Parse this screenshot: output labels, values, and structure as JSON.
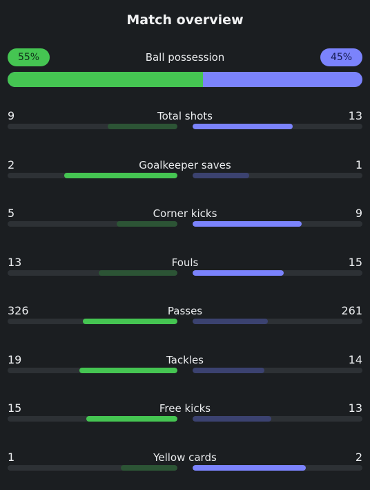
{
  "header": {
    "title": "Match overview"
  },
  "colors": {
    "home_strong": "#45c552",
    "home_dim": "#2c5435",
    "away_strong": "#7b83fc",
    "away_dim": "#3b4270"
  },
  "possession": {
    "label": "Ball possession",
    "home": "55%",
    "away": "45%",
    "home_value": 55
  },
  "stats": [
    {
      "label": "Total shots",
      "home": "9",
      "away": "13"
    },
    {
      "label": "Goalkeeper saves",
      "home": "2",
      "away": "1"
    },
    {
      "label": "Corner kicks",
      "home": "5",
      "away": "9"
    },
    {
      "label": "Fouls",
      "home": "13",
      "away": "15"
    },
    {
      "label": "Passes",
      "home": "326",
      "away": "261"
    },
    {
      "label": "Tackles",
      "home": "19",
      "away": "14"
    },
    {
      "label": "Free kicks",
      "home": "15",
      "away": "13"
    },
    {
      "label": "Yellow cards",
      "home": "1",
      "away": "2"
    }
  ]
}
